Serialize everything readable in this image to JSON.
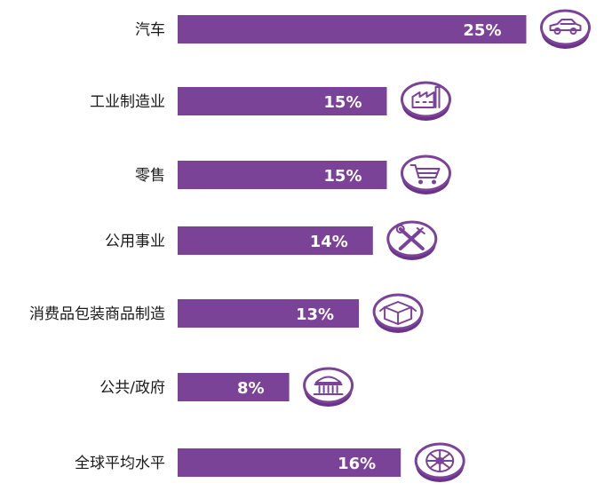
{
  "chart_data": {
    "type": "bar",
    "orientation": "horizontal",
    "categories": [
      "汽车",
      "工业制造业",
      "零售",
      "公用事业",
      "消费品包装商品制造",
      "公共/政府",
      "全球平均水平"
    ],
    "values": [
      25,
      15,
      15,
      14,
      13,
      8,
      16
    ],
    "value_labels": [
      "25%",
      "15%",
      "15%",
      "14%",
      "13%",
      "8%",
      "16%"
    ],
    "unit": "%",
    "icons": [
      "car-icon",
      "factory-icon",
      "shopping-cart-icon",
      "tools-icon",
      "package-box-icon",
      "government-building-icon",
      "globe-wheel-icon"
    ],
    "grid": false,
    "legend": "none",
    "colors": {
      "bar": "#7b4397",
      "value_text": "#ffffff",
      "category_text": "#1a1a1a",
      "icon_fill": "#ffffff",
      "icon_rim": "#7b4397",
      "icon_shadow": "#6a3388"
    }
  }
}
